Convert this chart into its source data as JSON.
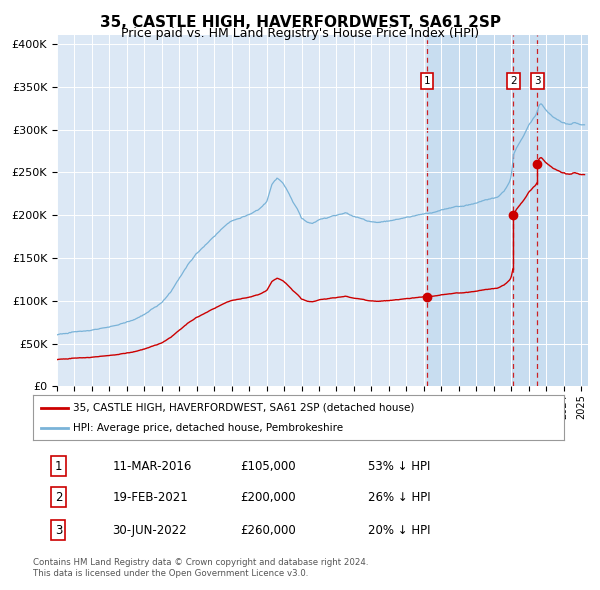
{
  "title": "35, CASTLE HIGH, HAVERFORDWEST, SA61 2SP",
  "subtitle": "Price paid vs. HM Land Registry's House Price Index (HPI)",
  "footer1": "Contains HM Land Registry data © Crown copyright and database right 2024.",
  "footer2": "This data is licensed under the Open Government Licence v3.0.",
  "legend_red": "35, CASTLE HIGH, HAVERFORDWEST, SA61 2SP (detached house)",
  "legend_blue": "HPI: Average price, detached house, Pembrokeshire",
  "transactions": [
    {
      "num": 1,
      "date": "11-MAR-2016",
      "price": 105000,
      "pct": "53%",
      "x_year": 2016.19
    },
    {
      "num": 2,
      "date": "19-FEB-2021",
      "price": 200000,
      "pct": "26%",
      "x_year": 2021.13
    },
    {
      "num": 3,
      "date": "30-JUN-2022",
      "price": 260000,
      "pct": "20%",
      "x_year": 2022.5
    }
  ],
  "ylim": [
    0,
    410000
  ],
  "xlim_start": 1995.0,
  "xlim_end": 2025.4,
  "plot_bg": "#dce8f5",
  "red_color": "#cc0000",
  "blue_color": "#7ab3d8",
  "shaded_color": "#c8ddf0",
  "grid_color": "#ffffff",
  "label_fontsize": 8,
  "title_fontsize": 11,
  "subtitle_fontsize": 9
}
